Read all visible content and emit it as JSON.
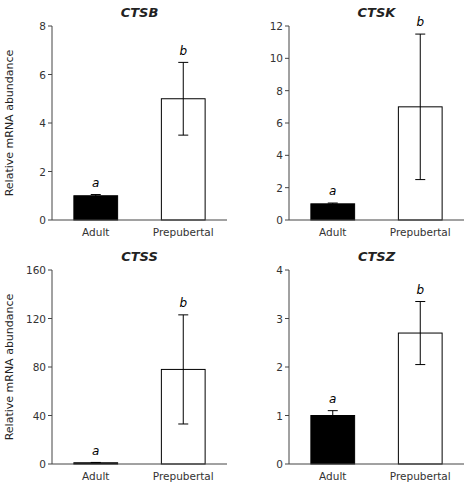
{
  "chart_data": [
    {
      "type": "bar",
      "title": "CTSB",
      "categories": [
        "Adult",
        "Prepubertal"
      ],
      "values": [
        1.0,
        5.0
      ],
      "errors": [
        0.05,
        1.5
      ],
      "colors": [
        "#000000",
        "#ffffff"
      ],
      "ylim": [
        0,
        8
      ],
      "yticks": [
        0,
        2,
        4,
        6,
        8
      ],
      "annotations": [
        "a",
        "b"
      ],
      "ylabel": "Relative mRNA abundance",
      "grid": false
    },
    {
      "type": "bar",
      "title": "CTSK",
      "categories": [
        "Adult",
        "Prepubertal"
      ],
      "values": [
        1.0,
        7.0
      ],
      "errors": [
        0.05,
        4.5
      ],
      "colors": [
        "#000000",
        "#ffffff"
      ],
      "ylim": [
        0,
        12
      ],
      "yticks": [
        0,
        2,
        4,
        6,
        8,
        10,
        12
      ],
      "annotations": [
        "a",
        "b"
      ],
      "grid": false
    },
    {
      "type": "bar",
      "title": "CTSS",
      "categories": [
        "Adult",
        "Prepubertal"
      ],
      "values": [
        1.0,
        78.0
      ],
      "errors": [
        0.3,
        45.0
      ],
      "colors": [
        "#000000",
        "#ffffff"
      ],
      "ylim": [
        0,
        160
      ],
      "yticks": [
        0,
        40,
        80,
        120,
        160
      ],
      "annotations": [
        "a",
        "b"
      ],
      "ylabel": "Relative mRNA abundance",
      "grid": false
    },
    {
      "type": "bar",
      "title": "CTSZ",
      "categories": [
        "Adult",
        "Prepubertal"
      ],
      "values": [
        1.0,
        2.7
      ],
      "errors": [
        0.1,
        0.65
      ],
      "colors": [
        "#000000",
        "#ffffff"
      ],
      "ylim": [
        0,
        4
      ],
      "yticks": [
        0,
        1,
        2,
        3,
        4
      ],
      "annotations": [
        "a",
        "b"
      ],
      "grid": false
    }
  ]
}
